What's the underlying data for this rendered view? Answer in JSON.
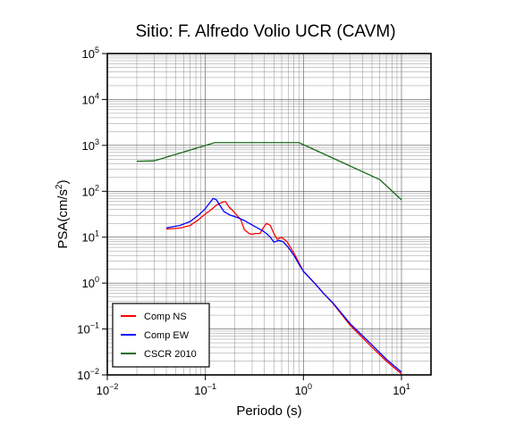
{
  "chart_data": {
    "type": "line",
    "title": "Sitio: F. Alfredo Volio UCR (CAVM)",
    "xlabel": "Periodo (s)",
    "ylabel_main": "PSA(cm/s",
    "ylabel_sup": "2",
    "ylabel_close": ")",
    "x_scale": "log",
    "y_scale": "log",
    "xlim": [
      0.01,
      20
    ],
    "ylim": [
      0.01,
      100000
    ],
    "x_tick_exponents": [
      -2,
      -1,
      0,
      1
    ],
    "y_tick_exponents": [
      -2,
      -1,
      0,
      1,
      2,
      3,
      4,
      5
    ],
    "tick_base": "10",
    "grid": true,
    "legend_position": "bottom-left",
    "series": [
      {
        "name": "Comp NS",
        "color": "#ff0000",
        "points": [
          [
            0.04,
            15
          ],
          [
            0.055,
            15.8
          ],
          [
            0.07,
            18
          ],
          [
            0.085,
            24
          ],
          [
            0.1,
            32
          ],
          [
            0.115,
            40
          ],
          [
            0.13,
            50
          ],
          [
            0.15,
            58
          ],
          [
            0.16,
            60
          ],
          [
            0.175,
            45
          ],
          [
            0.19,
            38
          ],
          [
            0.21,
            30
          ],
          [
            0.23,
            24
          ],
          [
            0.25,
            14.5
          ],
          [
            0.28,
            12
          ],
          [
            0.3,
            11.5
          ],
          [
            0.32,
            12
          ],
          [
            0.36,
            12
          ],
          [
            0.39,
            16
          ],
          [
            0.42,
            20
          ],
          [
            0.46,
            18
          ],
          [
            0.5,
            12
          ],
          [
            0.54,
            9
          ],
          [
            0.6,
            10
          ],
          [
            0.68,
            8
          ],
          [
            0.8,
            4.5
          ],
          [
            0.9,
            2.8
          ],
          [
            1.0,
            1.8
          ],
          [
            1.3,
            1.0
          ],
          [
            1.6,
            0.6
          ],
          [
            2.0,
            0.36
          ],
          [
            3.0,
            0.12
          ],
          [
            5.0,
            0.04
          ],
          [
            7.0,
            0.02
          ],
          [
            10.0,
            0.0105
          ]
        ]
      },
      {
        "name": "Comp EW",
        "color": "#0000ff",
        "points": [
          [
            0.04,
            16
          ],
          [
            0.055,
            18
          ],
          [
            0.07,
            22
          ],
          [
            0.085,
            30
          ],
          [
            0.1,
            42
          ],
          [
            0.11,
            55
          ],
          [
            0.12,
            70
          ],
          [
            0.13,
            65
          ],
          [
            0.14,
            50
          ],
          [
            0.155,
            36
          ],
          [
            0.18,
            30
          ],
          [
            0.2,
            28
          ],
          [
            0.22,
            26
          ],
          [
            0.25,
            23
          ],
          [
            0.28,
            20
          ],
          [
            0.32,
            17
          ],
          [
            0.38,
            14
          ],
          [
            0.42,
            12
          ],
          [
            0.46,
            10
          ],
          [
            0.5,
            7.8
          ],
          [
            0.56,
            8.5
          ],
          [
            0.62,
            8
          ],
          [
            0.7,
            6
          ],
          [
            0.8,
            4
          ],
          [
            0.9,
            2.6
          ],
          [
            1.0,
            1.8
          ],
          [
            1.3,
            1.0
          ],
          [
            1.6,
            0.6
          ],
          [
            2.0,
            0.37
          ],
          [
            3.0,
            0.13
          ],
          [
            5.0,
            0.045
          ],
          [
            7.0,
            0.022
          ],
          [
            10.0,
            0.0115
          ]
        ]
      },
      {
        "name": "CSCR 2010",
        "color": "#1a6b1a",
        "points": [
          [
            0.02,
            450
          ],
          [
            0.03,
            460
          ],
          [
            0.125,
            1150
          ],
          [
            0.9,
            1150
          ],
          [
            6.0,
            180
          ],
          [
            10.0,
            65
          ]
        ]
      }
    ]
  }
}
